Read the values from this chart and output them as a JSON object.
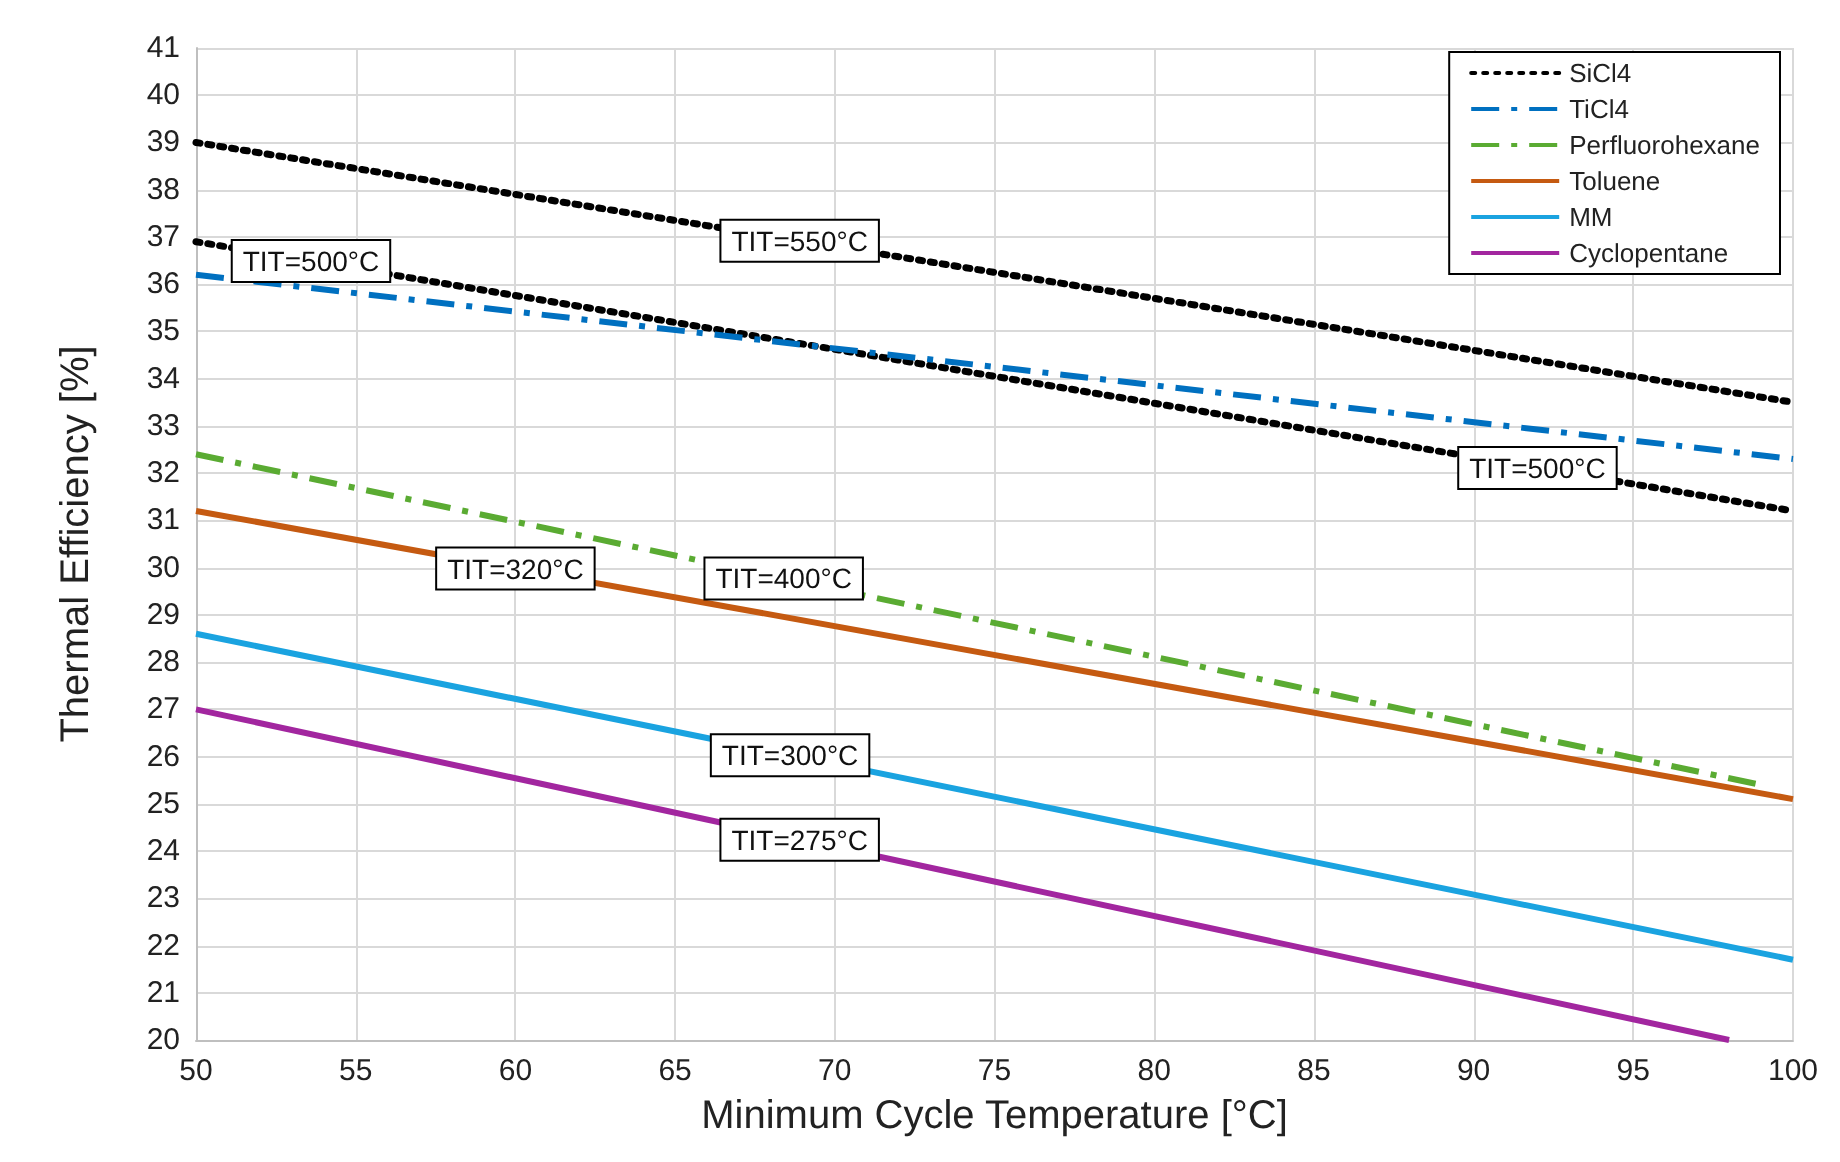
{
  "chart_data": {
    "type": "line",
    "xlabel": "Minimum Cycle Temperature [°C]",
    "ylabel": "Thermal Efficiency [%]",
    "xlim": [
      50,
      100
    ],
    "xticks": [
      50,
      55,
      60,
      65,
      70,
      75,
      80,
      85,
      90,
      95,
      100
    ],
    "ylim": [
      20,
      41
    ],
    "yticks": [
      20,
      21,
      22,
      23,
      24,
      25,
      26,
      27,
      28,
      29,
      30,
      31,
      32,
      33,
      34,
      35,
      36,
      37,
      38,
      39,
      40,
      41
    ],
    "grid": true,
    "legend": "top right",
    "marker": "none",
    "series": [
      {
        "name": "SiCl4",
        "color": "#000000",
        "line_style": "dotted",
        "x": [
          50,
          100
        ],
        "values": [
          39.0,
          33.5
        ]
      },
      {
        "color": "#000000",
        "line_style": "dotted",
        "x": [
          50,
          100
        ],
        "values": [
          36.9,
          31.2
        ]
      },
      {
        "name": "TiCl4",
        "color": "#0070c0",
        "line_style": "dashed",
        "x": [
          50,
          100
        ],
        "values": [
          36.2,
          32.3
        ]
      },
      {
        "name": "Perfluorohexane",
        "color": "#5aab32",
        "line_style": "dashed",
        "x": [
          50,
          99
        ],
        "values": [
          32.4,
          25.4
        ]
      },
      {
        "name": "Toluene",
        "color": "#c55a11",
        "line_style": "solid",
        "x": [
          50,
          100
        ],
        "values": [
          31.2,
          25.1
        ]
      },
      {
        "name": "MM",
        "color": "#1aa3e0",
        "line_style": "solid",
        "x": [
          50,
          100
        ],
        "values": [
          28.6,
          21.7
        ]
      },
      {
        "name": "Cyclopentane",
        "color": "#a2269f",
        "line_style": "solid",
        "x": [
          50,
          98
        ],
        "values": [
          27.0,
          20.0
        ]
      }
    ],
    "annotations": [
      {
        "text": "TIT=550°C",
        "x": 68.9,
        "y": 36.92
      },
      {
        "text": "TIT=500°C",
        "x": 53.6,
        "y": 36.49
      },
      {
        "text": "TIT=500°C",
        "x": 92,
        "y": 32.11
      },
      {
        "text": "TIT=320°C",
        "x": 60,
        "y": 29.98
      },
      {
        "text": "TIT=400°C",
        "x": 68.4,
        "y": 29.77
      },
      {
        "text": "TIT=300°C",
        "x": 68.6,
        "y": 26.03
      },
      {
        "text": "TIT=275°C",
        "x": 68.9,
        "y": 24.24
      }
    ]
  }
}
